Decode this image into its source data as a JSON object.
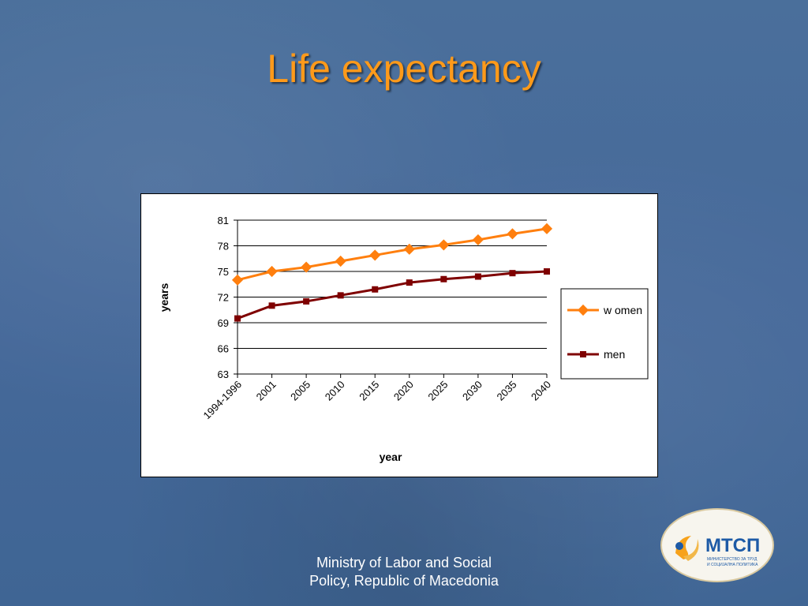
{
  "slide": {
    "title": "Life expectancy",
    "footer_line1": "Ministry of Labor and Social",
    "footer_line2": "Policy, Republic of Macedonia",
    "logo_text": "МТСП",
    "logo_subtext_1": "МИНИСТЕРСТВО ЗА ТРУД",
    "logo_subtext_2": "И СОЦИЈАЛНА ПОЛИТИКА"
  },
  "colors": {
    "title": "#ff9a1a",
    "women": "#ff7f0e",
    "men": "#7f0000",
    "logo_blue": "#1d5aa6",
    "logo_orange": "#f7a21b"
  },
  "chart_data": {
    "type": "line",
    "categories": [
      "1994-1996",
      "2001",
      "2005",
      "2010",
      "2015",
      "2020",
      "2025",
      "2030",
      "2035",
      "2040"
    ],
    "series": [
      {
        "name": "w omen",
        "values": [
          74.0,
          75.0,
          75.5,
          76.2,
          76.9,
          77.6,
          78.1,
          78.7,
          79.4,
          80.0
        ]
      },
      {
        "name": "men",
        "values": [
          69.5,
          71.0,
          71.5,
          72.2,
          72.9,
          73.7,
          74.1,
          74.4,
          74.8,
          75.0
        ]
      }
    ],
    "xlabel": "year",
    "ylabel": "years",
    "ylim": [
      63,
      81
    ],
    "yticks": [
      63,
      66,
      69,
      72,
      75,
      78,
      81
    ],
    "grid": true,
    "legend": "right"
  }
}
